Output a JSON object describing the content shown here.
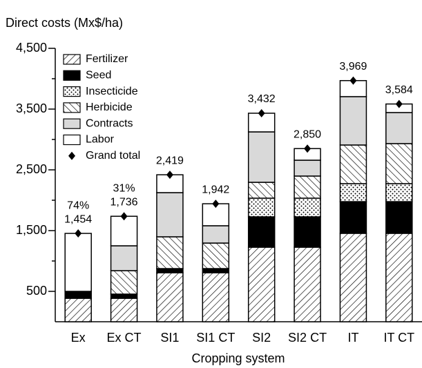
{
  "chart_data": {
    "type": "stacked_bar",
    "ylabel": "Direct costs (Mx$/ha)",
    "xlabel": "Cropping system",
    "categories": [
      "Ex",
      "Ex CT",
      "SI1",
      "SI1 CT",
      "SI2",
      "SI2 CT",
      "IT",
      "IT CT"
    ],
    "ylim": [
      0,
      4500
    ],
    "yticks": [
      {
        "value": 500,
        "label": "500"
      },
      {
        "value": 1500,
        "label": "1,500"
      },
      {
        "value": 2500,
        "label": "2,500"
      },
      {
        "value": 3500,
        "label": "3,500"
      },
      {
        "value": 4500,
        "label": "4,500"
      }
    ],
    "minor_yticks": [
      1000,
      2000,
      3000,
      4000
    ],
    "series": [
      {
        "name": "Fertilizer",
        "color": "#ffffff",
        "pattern": "backslash",
        "values": [
          386,
          386,
          807,
          807,
          1227,
          1227,
          1455,
          1455
        ]
      },
      {
        "name": "Seed",
        "color": "#000000",
        "pattern": "solid",
        "values": [
          114,
          69,
          68,
          68,
          500,
          500,
          522,
          522
        ]
      },
      {
        "name": "Insecticide",
        "color": "#ffffff",
        "pattern": "dots",
        "values": [
          0,
          0,
          0,
          0,
          307,
          307,
          296,
          296
        ]
      },
      {
        "name": "Herbicide",
        "color": "#ffffff",
        "pattern": "slash",
        "values": [
          0,
          386,
          523,
          420,
          261,
          364,
          636,
          659
        ]
      },
      {
        "name": "Contracts",
        "color": "#d9d9d9",
        "pattern": "solid",
        "values": [
          0,
          409,
          727,
          285,
          830,
          261,
          796,
          511
        ]
      },
      {
        "name": "Labor",
        "color": "#ffffff",
        "pattern": "solid",
        "values": [
          954,
          486,
          294,
          362,
          307,
          191,
          264,
          141
        ]
      }
    ],
    "total": {
      "name": "Grand total",
      "values": [
        1454,
        1736,
        2419,
        1942,
        3432,
        2850,
        3969,
        3584
      ],
      "value_labels": [
        "1,454",
        "1,736",
        "2,419",
        "1,942",
        "3,432",
        "2,850",
        "3,969",
        "3,584"
      ]
    },
    "annotations": [
      {
        "text": "74%",
        "category": 0
      },
      {
        "text": "31%",
        "category": 1
      }
    ],
    "legend": "upper left"
  }
}
